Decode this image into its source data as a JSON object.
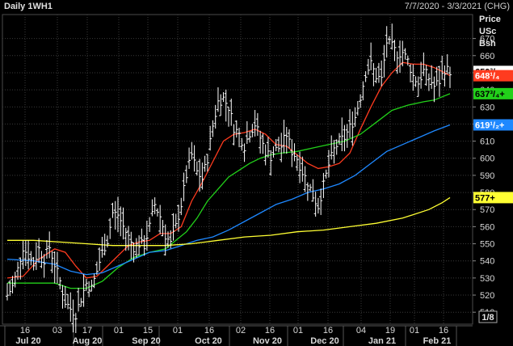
{
  "header": {
    "title": "Daily 1WH1",
    "date_range": "7/7/2020 - 3/3/2021 (CHG)"
  },
  "axis_header": {
    "line1": "Price",
    "line2": "USc",
    "line3": "Bsh"
  },
  "colors": {
    "background": "#000000",
    "grid": "#3a3a3a",
    "price_bars": "#ffffff",
    "ma_red": "#ff3b1f",
    "ma_green": "#22d11a",
    "ma_blue": "#1e88ff",
    "ma_yellow": "#ffff33"
  },
  "chart_data": {
    "type": "line",
    "title": "Daily 1WH1",
    "price_unit": "USc/Bsh",
    "ylim": [
      503,
      684
    ],
    "y_ticks": [
      510,
      520,
      530,
      540,
      550,
      560,
      570,
      580,
      590,
      600,
      610,
      620,
      630,
      640,
      650,
      660,
      670
    ],
    "y_tick_labels": [
      "510",
      "520",
      "530",
      "540",
      "550",
      "560",
      "570",
      "580",
      "590",
      "600",
      "610",
      "620",
      "630",
      "640",
      "650",
      "660",
      "670"
    ],
    "x_day_ticks": [
      "16",
      "03",
      "17",
      "01",
      "15",
      "01",
      "16",
      "02",
      "16",
      "01",
      "16",
      "04",
      "19",
      "01",
      "16"
    ],
    "x_month_labels": [
      "Jul 20",
      "Aug 20",
      "Sep 20",
      "Oct 20",
      "Nov 20",
      "Dec 20",
      "Jan 21",
      "Feb 21"
    ],
    "tick_fraction_label": "1/8",
    "last_value_labels": [
      {
        "text": "650³/₄",
        "value": 650.75,
        "color": "#ffffff"
      },
      {
        "text": "648¹/₄",
        "value": 648.25,
        "color": "#ff3b1f"
      },
      {
        "text": "637³/₄+",
        "value": 637.75,
        "color": "#22d11a"
      },
      {
        "text": "619¹/₂+",
        "value": 619.5,
        "color": "#1e88ff"
      },
      {
        "text": "577+",
        "value": 577,
        "color": "#ffff33"
      }
    ],
    "price_series": {
      "name": "",
      "type": "ohlc",
      "close_path": [
        [
          0,
          520
        ],
        [
          2,
          525
        ],
        [
          4,
          535
        ],
        [
          6,
          548
        ],
        [
          8,
          543
        ],
        [
          10,
          538
        ],
        [
          12,
          547
        ],
        [
          14,
          541
        ],
        [
          16,
          548
        ],
        [
          18,
          538
        ],
        [
          20,
          528
        ],
        [
          22,
          516
        ],
        [
          24,
          512
        ],
        [
          26,
          509
        ],
        [
          28,
          518
        ],
        [
          30,
          527
        ],
        [
          32,
          524
        ],
        [
          34,
          534
        ],
        [
          36,
          545
        ],
        [
          38,
          552
        ],
        [
          40,
          568
        ],
        [
          42,
          567
        ],
        [
          44,
          560
        ],
        [
          46,
          554
        ],
        [
          48,
          548
        ],
        [
          50,
          550
        ],
        [
          52,
          549
        ],
        [
          54,
          560
        ],
        [
          56,
          573
        ],
        [
          58,
          566
        ],
        [
          60,
          555
        ],
        [
          62,
          550
        ],
        [
          64,
          560
        ],
        [
          66,
          573
        ],
        [
          68,
          590
        ],
        [
          70,
          602
        ],
        [
          72,
          592
        ],
        [
          74,
          588
        ],
        [
          76,
          600
        ],
        [
          78,
          619
        ],
        [
          80,
          633
        ],
        [
          82,
          635
        ],
        [
          84,
          630
        ],
        [
          86,
          618
        ],
        [
          88,
          614
        ],
        [
          90,
          607
        ],
        [
          92,
          615
        ],
        [
          94,
          620
        ],
        [
          96,
          612
        ],
        [
          98,
          604
        ],
        [
          100,
          601
        ],
        [
          102,
          605
        ],
        [
          104,
          607
        ],
        [
          106,
          614
        ],
        [
          108,
          604
        ],
        [
          110,
          600
        ],
        [
          112,
          592
        ],
        [
          114,
          586
        ],
        [
          116,
          578
        ],
        [
          118,
          572
        ],
        [
          120,
          584
        ],
        [
          122,
          596
        ],
        [
          124,
          605
        ],
        [
          126,
          610
        ],
        [
          128,
          612
        ],
        [
          130,
          618
        ],
        [
          132,
          624
        ],
        [
          134,
          636
        ],
        [
          136,
          650
        ],
        [
          138,
          655
        ],
        [
          140,
          648
        ],
        [
          142,
          646
        ],
        [
          144,
          668
        ],
        [
          146,
          665
        ],
        [
          148,
          661
        ],
        [
          150,
          662
        ],
        [
          152,
          657
        ],
        [
          154,
          648
        ],
        [
          156,
          644
        ],
        [
          158,
          651
        ],
        [
          160,
          647
        ],
        [
          162,
          642
        ],
        [
          164,
          645
        ],
        [
          166,
          652
        ],
        [
          168,
          651
        ]
      ],
      "bar_range": 9
    },
    "series": [
      {
        "name": "",
        "color": "#ff3b1f",
        "points": [
          [
            0,
            530
          ],
          [
            6,
            531
          ],
          [
            12,
            541
          ],
          [
            18,
            547
          ],
          [
            22,
            545
          ],
          [
            26,
            537
          ],
          [
            30,
            530
          ],
          [
            34,
            531
          ],
          [
            38,
            537
          ],
          [
            42,
            543
          ],
          [
            46,
            549
          ],
          [
            50,
            551
          ],
          [
            54,
            552
          ],
          [
            58,
            556
          ],
          [
            62,
            556
          ],
          [
            66,
            560
          ],
          [
            70,
            575
          ],
          [
            74,
            586
          ],
          [
            78,
            598
          ],
          [
            82,
            610
          ],
          [
            86,
            614
          ],
          [
            90,
            615
          ],
          [
            94,
            617
          ],
          [
            98,
            614
          ],
          [
            102,
            608
          ],
          [
            106,
            607
          ],
          [
            110,
            602
          ],
          [
            114,
            597
          ],
          [
            118,
            594
          ],
          [
            122,
            595
          ],
          [
            126,
            597
          ],
          [
            130,
            603
          ],
          [
            134,
            617
          ],
          [
            138,
            630
          ],
          [
            142,
            642
          ],
          [
            146,
            650
          ],
          [
            150,
            656
          ],
          [
            154,
            655
          ],
          [
            158,
            655
          ],
          [
            162,
            653
          ],
          [
            166,
            650
          ],
          [
            168,
            648.25
          ]
        ]
      },
      {
        "name": "",
        "color": "#22d11a",
        "points": [
          [
            0,
            527
          ],
          [
            10,
            527
          ],
          [
            18,
            527
          ],
          [
            24,
            524
          ],
          [
            30,
            524
          ],
          [
            36,
            528
          ],
          [
            42,
            536
          ],
          [
            48,
            542
          ],
          [
            54,
            545
          ],
          [
            60,
            547
          ],
          [
            64,
            552
          ],
          [
            68,
            557
          ],
          [
            72,
            565
          ],
          [
            76,
            575
          ],
          [
            80,
            582
          ],
          [
            84,
            589
          ],
          [
            88,
            593
          ],
          [
            92,
            597
          ],
          [
            96,
            600
          ],
          [
            100,
            602
          ],
          [
            104,
            603
          ],
          [
            110,
            604
          ],
          [
            116,
            606
          ],
          [
            122,
            608
          ],
          [
            128,
            610
          ],
          [
            134,
            614
          ],
          [
            140,
            621
          ],
          [
            146,
            628
          ],
          [
            152,
            631
          ],
          [
            158,
            633
          ],
          [
            162,
            634
          ],
          [
            168,
            637.75
          ]
        ]
      },
      {
        "name": "",
        "color": "#1e88ff",
        "points": [
          [
            0,
            541
          ],
          [
            10,
            540
          ],
          [
            18,
            538
          ],
          [
            24,
            534
          ],
          [
            30,
            532
          ],
          [
            36,
            533
          ],
          [
            42,
            537
          ],
          [
            48,
            541
          ],
          [
            54,
            545
          ],
          [
            60,
            546
          ],
          [
            66,
            549
          ],
          [
            72,
            552
          ],
          [
            78,
            554
          ],
          [
            84,
            558
          ],
          [
            90,
            563
          ],
          [
            96,
            568
          ],
          [
            102,
            573
          ],
          [
            108,
            576
          ],
          [
            114,
            580
          ],
          [
            120,
            582
          ],
          [
            126,
            585
          ],
          [
            132,
            590
          ],
          [
            138,
            597
          ],
          [
            144,
            604
          ],
          [
            150,
            608
          ],
          [
            156,
            612
          ],
          [
            162,
            616
          ],
          [
            168,
            619.5
          ]
        ]
      },
      {
        "name": "",
        "color": "#ffff33",
        "points": [
          [
            0,
            552
          ],
          [
            10,
            552
          ],
          [
            20,
            551
          ],
          [
            30,
            550
          ],
          [
            40,
            549
          ],
          [
            50,
            549
          ],
          [
            60,
            549
          ],
          [
            70,
            550
          ],
          [
            80,
            552
          ],
          [
            90,
            554
          ],
          [
            100,
            555
          ],
          [
            110,
            557
          ],
          [
            120,
            558
          ],
          [
            130,
            560
          ],
          [
            140,
            562
          ],
          [
            150,
            565
          ],
          [
            160,
            570
          ],
          [
            165,
            574
          ],
          [
            168,
            577
          ]
        ]
      }
    ]
  }
}
